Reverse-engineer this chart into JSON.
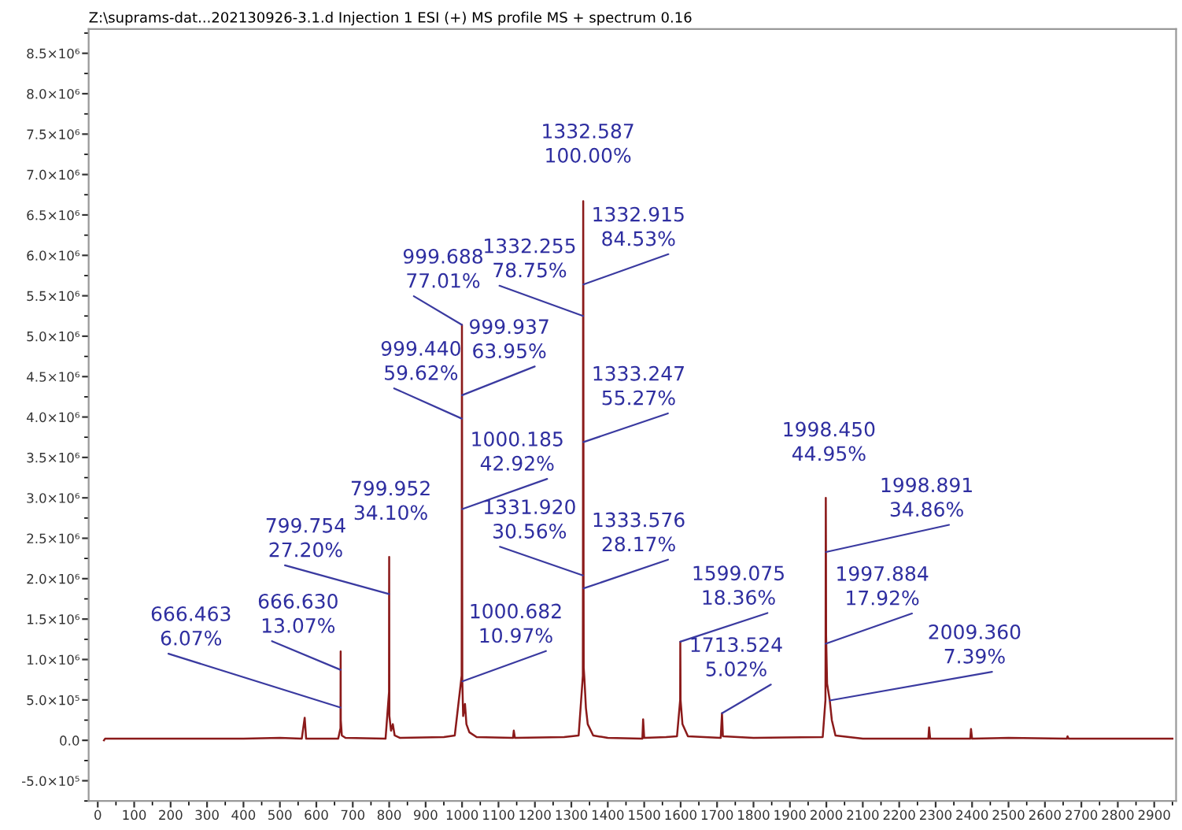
{
  "chart_data": {
    "type": "line",
    "title": "Z:\\suprams-dat...202130926-3.1.d Injection 1 ESI (+) MS profile MS + spectrum 0.16",
    "x": [
      17,
      20,
      200,
      400,
      500,
      560,
      568,
      572,
      660,
      666.296,
      666.463,
      666.63,
      666.797,
      666.963,
      667.13,
      670,
      680,
      790,
      799.556,
      799.754,
      799.952,
      800.15,
      800.35,
      800.55,
      805,
      810,
      815,
      830,
      950,
      980,
      998.94,
      999.19,
      999.44,
      999.688,
      999.937,
      1000.185,
      1000.434,
      1000.682,
      1003,
      1008,
      1012,
      1020,
      1040,
      1140,
      1142,
      1145,
      1280,
      1320,
      1331.59,
      1331.92,
      1332.255,
      1332.587,
      1332.915,
      1333.247,
      1333.576,
      1333.9,
      1336,
      1340,
      1345,
      1360,
      1400,
      1495,
      1497,
      1500,
      1560,
      1590,
      1598.7,
      1599.075,
      1599.45,
      1599.8,
      1605,
      1620,
      1710,
      1713.524,
      1716,
      1800,
      1990,
      1997.5,
      1997.884,
      1998.45,
      1998.891,
      1999.3,
      2002,
      2009.36,
      2015,
      2025,
      2100,
      2280,
      2282,
      2285,
      2395,
      2397,
      2400,
      2500,
      2660,
      2662,
      2665,
      2950
    ],
    "values": [
      0,
      20000,
      20000,
      20000,
      30000,
      20000,
      280000,
      20000,
      20000,
      150000,
      405000,
      872000,
      1100000,
      600000,
      250000,
      60000,
      30000,
      20000,
      600000,
      1810000,
      2270000,
      1600000,
      800000,
      300000,
      120000,
      200000,
      60000,
      30000,
      40000,
      60000,
      800000,
      2000000,
      3980000,
      5140000,
      4270000,
      2860000,
      1800000,
      730000,
      300000,
      450000,
      200000,
      100000,
      40000,
      30000,
      120000,
      30000,
      40000,
      60000,
      800000,
      2040000,
      5250000,
      6670000,
      5640000,
      3690000,
      1880000,
      900000,
      750000,
      400000,
      200000,
      60000,
      30000,
      20000,
      260000,
      30000,
      40000,
      50000,
      500000,
      1220000,
      900000,
      500000,
      200000,
      50000,
      30000,
      335000,
      50000,
      30000,
      40000,
      500000,
      1195000,
      3000000,
      2330000,
      1300000,
      700000,
      493000,
      250000,
      60000,
      20000,
      20000,
      160000,
      20000,
      20000,
      140000,
      20000,
      30000,
      20000,
      50000,
      20000,
      20000
    ],
    "color": "#8b1a1a",
    "xlim": [
      -25,
      2960
    ],
    "xticks": [
      0,
      100,
      200,
      300,
      400,
      500,
      600,
      700,
      800,
      900,
      1000,
      1100,
      1200,
      1300,
      1400,
      1500,
      1600,
      1700,
      1800,
      1900,
      2000,
      2100,
      2200,
      2300,
      2400,
      2500,
      2600,
      2700,
      2800,
      2900
    ],
    "ylim": [
      -750000,
      8800000
    ],
    "yticks": [
      {
        "value": -500000,
        "label": "-5.0×10⁵"
      },
      {
        "value": 0,
        "label": "0.0"
      },
      {
        "value": 500000,
        "label": "5.0×10⁵"
      },
      {
        "value": 1000000,
        "label": "1.0×10⁶"
      },
      {
        "value": 1500000,
        "label": "1.5×10⁶"
      },
      {
        "value": 2000000,
        "label": "2.0×10⁶"
      },
      {
        "value": 2500000,
        "label": "2.5×10⁶"
      },
      {
        "value": 3000000,
        "label": "3.0×10⁶"
      },
      {
        "value": 3500000,
        "label": "3.5×10⁶"
      },
      {
        "value": 4000000,
        "label": "4.0×10⁶"
      },
      {
        "value": 4500000,
        "label": "4.5×10⁶"
      },
      {
        "value": 5000000,
        "label": "5.0×10⁶"
      },
      {
        "value": 5500000,
        "label": "5.5×10⁶"
      },
      {
        "value": 6000000,
        "label": "6.0×10⁶"
      },
      {
        "value": 6500000,
        "label": "6.5×10⁶"
      },
      {
        "value": 7000000,
        "label": "7.0×10⁶"
      },
      {
        "value": 7500000,
        "label": "7.5×10⁶"
      },
      {
        "value": 8000000,
        "label": "8.0×10⁶"
      },
      {
        "value": 8500000,
        "label": "8.5×10⁶"
      }
    ],
    "annotations": [
      {
        "text": "666.463\n6.07%",
        "x": 666.463,
        "y": 405000
      },
      {
        "text": "666.630\n13.07%",
        "x": 666.63,
        "y": 872000
      },
      {
        "text": "799.754\n27.20%",
        "x": 799.754,
        "y": 1810000
      },
      {
        "text": "799.952\n34.10%",
        "x": 799.952,
        "y": 2270000
      },
      {
        "text": "999.440\n59.62%",
        "x": 999.44,
        "y": 3980000
      },
      {
        "text": "999.688\n77.01%",
        "x": 999.688,
        "y": 5140000
      },
      {
        "text": "999.937\n63.95%",
        "x": 999.937,
        "y": 4270000
      },
      {
        "text": "1000.185\n42.92%",
        "x": 1000.185,
        "y": 2860000
      },
      {
        "text": "1000.682\n10.97%",
        "x": 1000.682,
        "y": 730000
      },
      {
        "text": "1331.920\n30.56%",
        "x": 1331.92,
        "y": 2040000
      },
      {
        "text": "1332.255\n78.75%",
        "x": 1332.255,
        "y": 5250000
      },
      {
        "text": "1332.587\n100.00%",
        "x": 1332.587,
        "y": 6670000
      },
      {
        "text": "1332.915\n84.53%",
        "x": 1332.915,
        "y": 5640000
      },
      {
        "text": "1333.247\n55.27%",
        "x": 1333.247,
        "y": 3690000
      },
      {
        "text": "1333.576\n28.17%",
        "x": 1333.576,
        "y": 1880000
      },
      {
        "text": "1599.075\n18.36%",
        "x": 1599.075,
        "y": 1220000
      },
      {
        "text": "1713.524\n5.02%",
        "x": 1713.524,
        "y": 335000
      },
      {
        "text": "1997.884\n17.92%",
        "x": 1997.884,
        "y": 1195000
      },
      {
        "text": "1998.450\n44.95%",
        "x": 1998.45,
        "y": 3000000
      },
      {
        "text": "1998.891\n34.86%",
        "x": 1998.891,
        "y": 2330000
      },
      {
        "text": "2009.360\n7.39%",
        "x": 2009.36,
        "y": 493000
      }
    ]
  }
}
